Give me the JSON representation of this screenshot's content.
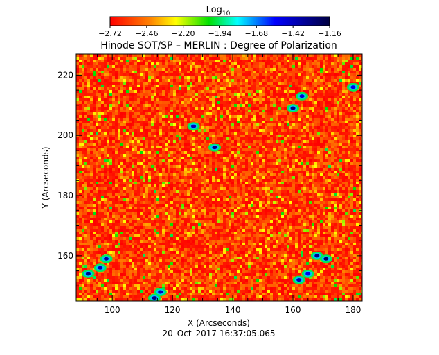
{
  "chart_data": {
    "type": "heatmap",
    "title": "Hinode SOT/SP – MERLIN : Degree of Polarization",
    "xlabel": "X (Arcseconds)",
    "ylabel": "Y (Arcseconds)",
    "timestamp": "20–Oct–2017 16:37:05.065",
    "xlim": [
      88,
      183
    ],
    "ylim": [
      145,
      227
    ],
    "x_ticks": [
      100,
      120,
      140,
      160,
      180
    ],
    "y_ticks": [
      160,
      180,
      200,
      220
    ],
    "colorbar": {
      "label": "Log",
      "label_sub": "10",
      "min": -2.72,
      "max": -1.16,
      "tick_labels": [
        "−2.72",
        "−2.46",
        "−2.20",
        "−1.94",
        "−1.68",
        "−1.42",
        "−1.16"
      ],
      "colormap": [
        "#ff0000",
        "#ff8000",
        "#ffff00",
        "#00e000",
        "#00ffff",
        "#0000ff",
        "#000040"
      ]
    },
    "dominant_range": [
      -2.72,
      -2.46
    ],
    "features": [
      {
        "x": 92,
        "y": 154,
        "value": -1.3
      },
      {
        "x": 96,
        "y": 156,
        "value": -1.4
      },
      {
        "x": 98,
        "y": 159,
        "value": -1.35
      },
      {
        "x": 114,
        "y": 146,
        "value": -1.3
      },
      {
        "x": 116,
        "y": 148,
        "value": -1.4
      },
      {
        "x": 127,
        "y": 203,
        "value": -1.4
      },
      {
        "x": 134,
        "y": 196,
        "value": -1.3
      },
      {
        "x": 160,
        "y": 209,
        "value": -1.3
      },
      {
        "x": 163,
        "y": 213,
        "value": -1.45
      },
      {
        "x": 168,
        "y": 160,
        "value": -1.3
      },
      {
        "x": 171,
        "y": 159,
        "value": -1.25
      },
      {
        "x": 162,
        "y": 152,
        "value": -1.4
      },
      {
        "x": 165,
        "y": 154,
        "value": -1.5
      },
      {
        "x": 180,
        "y": 216,
        "value": -1.5
      }
    ]
  }
}
